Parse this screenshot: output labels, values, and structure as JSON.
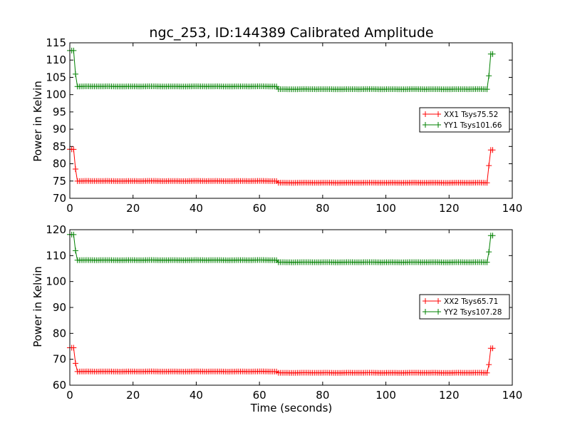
{
  "colors": {
    "xx": "#ff0000",
    "yy": "#008000",
    "axis": "#000000",
    "background": "#ffffff"
  },
  "chart_data": [
    {
      "type": "line",
      "title": "ngc_253, ID:144389 Calibrated Amplitude",
      "xlabel": "",
      "ylabel": "Power in Kelvin",
      "xlim": [
        0,
        140
      ],
      "ylim": [
        70,
        115
      ],
      "xticks": [
        "0",
        "20",
        "40",
        "60",
        "80",
        "100",
        "120",
        "140"
      ],
      "yticks": [
        "70",
        "75",
        "80",
        "85",
        "90",
        "95",
        "100",
        "105",
        "110",
        "115"
      ],
      "legend_position": "right",
      "series": [
        {
          "name": "XX1 Tsys75.52",
          "color_key": "xx",
          "marker": "+",
          "segments": [
            {
              "x_from": 0,
              "x_to": 1.7,
              "value": 84.2
            },
            {
              "x_from": 1.7,
              "x_to": 2.3,
              "value": 78.5
            },
            {
              "x_from": 2.3,
              "x_to": 66,
              "value": 75.0
            },
            {
              "x_from": 66,
              "x_to": 132,
              "value": 74.5
            },
            {
              "x_from": 132,
              "x_to": 132.8,
              "value": 79.5
            },
            {
              "x_from": 132.8,
              "x_to": 134,
              "value": 84.0
            }
          ]
        },
        {
          "name": "YY1 Tsys101.66",
          "color_key": "yy",
          "marker": "+",
          "segments": [
            {
              "x_from": 0,
              "x_to": 1.7,
              "value": 112.8
            },
            {
              "x_from": 1.7,
              "x_to": 2.3,
              "value": 106.0
            },
            {
              "x_from": 2.3,
              "x_to": 66,
              "value": 102.4
            },
            {
              "x_from": 66,
              "x_to": 132,
              "value": 101.6
            },
            {
              "x_from": 132,
              "x_to": 132.8,
              "value": 105.5
            },
            {
              "x_from": 132.8,
              "x_to": 134,
              "value": 111.8
            }
          ]
        }
      ]
    },
    {
      "type": "line",
      "title": "",
      "xlabel": "Time (seconds)",
      "ylabel": "Power in Kelvin",
      "xlim": [
        0,
        140
      ],
      "ylim": [
        60,
        120
      ],
      "xticks": [
        "0",
        "20",
        "40",
        "60",
        "80",
        "100",
        "120",
        "140"
      ],
      "yticks": [
        "60",
        "70",
        "80",
        "90",
        "100",
        "110",
        "120"
      ],
      "legend_position": "right",
      "series": [
        {
          "name": "XX2 Tsys65.71",
          "color_key": "xx",
          "marker": "+",
          "segments": [
            {
              "x_from": 0,
              "x_to": 1.7,
              "value": 74.5
            },
            {
              "x_from": 1.7,
              "x_to": 2.3,
              "value": 68.5
            },
            {
              "x_from": 2.3,
              "x_to": 66,
              "value": 65.3
            },
            {
              "x_from": 66,
              "x_to": 132,
              "value": 64.8
            },
            {
              "x_from": 132,
              "x_to": 132.8,
              "value": 68.0
            },
            {
              "x_from": 132.8,
              "x_to": 134,
              "value": 74.3
            }
          ]
        },
        {
          "name": "YY2 Tsys107.28",
          "color_key": "yy",
          "marker": "+",
          "segments": [
            {
              "x_from": 0,
              "x_to": 1.7,
              "value": 118.2
            },
            {
              "x_from": 1.7,
              "x_to": 2.3,
              "value": 112.0
            },
            {
              "x_from": 2.3,
              "x_to": 66,
              "value": 108.3
            },
            {
              "x_from": 66,
              "x_to": 132,
              "value": 107.5
            },
            {
              "x_from": 132,
              "x_to": 132.8,
              "value": 111.5
            },
            {
              "x_from": 132.8,
              "x_to": 134,
              "value": 117.8
            }
          ]
        }
      ]
    }
  ]
}
